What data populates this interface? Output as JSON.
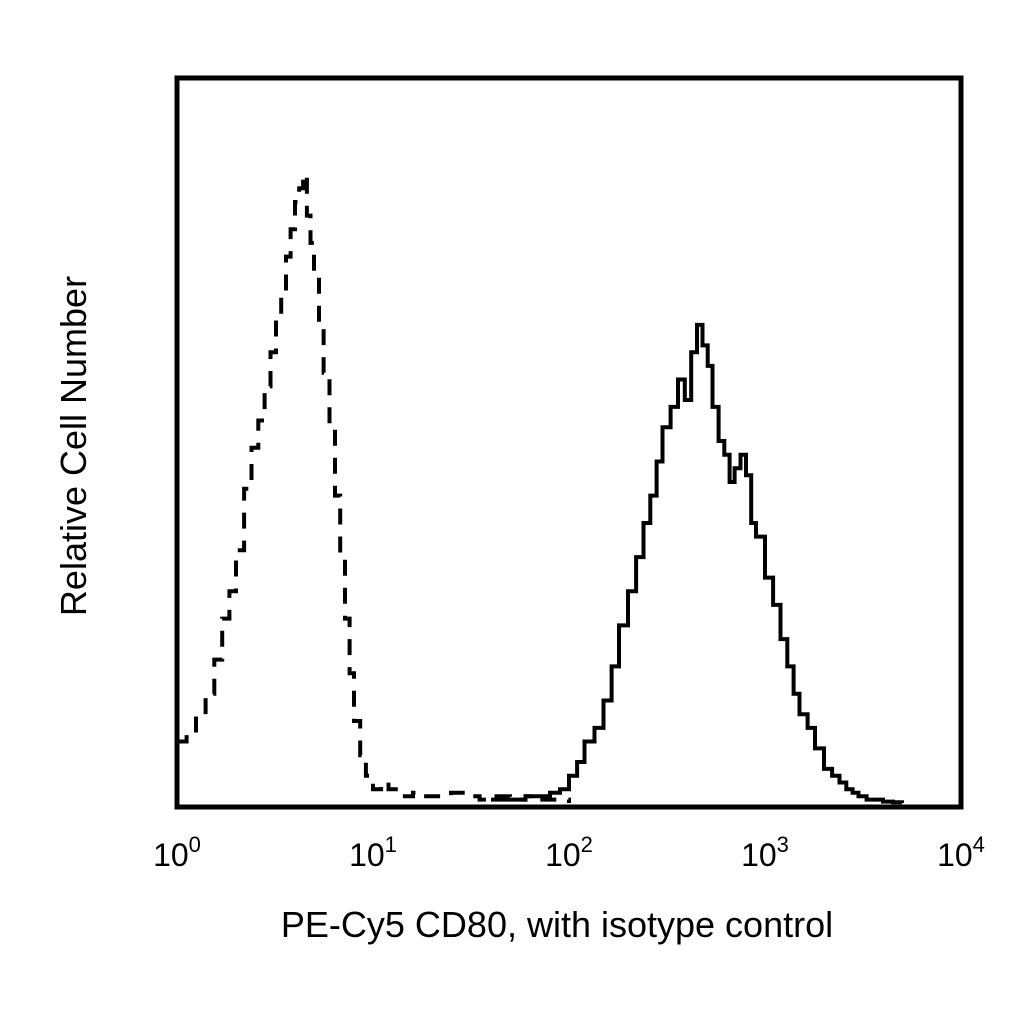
{
  "chart_data": {
    "type": "line",
    "xlabel": "PE-Cy5 CD80, with isotype control",
    "ylabel": "Relative Cell Number",
    "x_scale": "log",
    "xlim": [
      1,
      10000
    ],
    "ylim": [
      0,
      100
    ],
    "y_ticks_shown": false,
    "grid": false,
    "x_ticks": [
      {
        "base": "10",
        "exp": "0",
        "value": 1
      },
      {
        "base": "10",
        "exp": "1",
        "value": 10
      },
      {
        "base": "10",
        "exp": "2",
        "value": 100
      },
      {
        "base": "10",
        "exp": "3",
        "value": 1000
      },
      {
        "base": "10",
        "exp": "4",
        "value": 10000
      }
    ],
    "series": [
      {
        "style": "dashed",
        "color": "#000000",
        "x": [
          1.0,
          1.12,
          1.25,
          1.4,
          1.55,
          1.7,
          1.85,
          2.0,
          2.2,
          2.4,
          2.6,
          2.8,
          3.0,
          3.2,
          3.4,
          3.6,
          3.8,
          4.0,
          4.2,
          4.4,
          4.6,
          4.8,
          5.0,
          5.3,
          5.6,
          6.0,
          6.4,
          6.8,
          7.2,
          7.6,
          8.0,
          8.6,
          9.2,
          10,
          11,
          12,
          14,
          16,
          18,
          20,
          25,
          30,
          35,
          40,
          45,
          50,
          60,
          70,
          80,
          90,
          100
        ],
        "y": [
          9,
          10,
          13,
          16,
          21,
          27,
          31,
          37,
          46,
          52,
          56,
          61,
          66,
          71,
          75,
          80,
          84,
          88,
          90,
          92,
          86,
          82,
          77,
          70,
          63,
          55,
          45,
          36,
          27,
          19,
          12,
          7,
          4,
          2,
          3,
          2,
          1,
          1.5,
          1,
          1,
          1.5,
          1,
          0.5,
          1,
          1,
          0.5,
          1,
          0.5,
          0.5,
          0.5,
          0
        ]
      },
      {
        "style": "solid",
        "color": "#000000",
        "x": [
          40,
          50,
          60,
          70,
          80,
          90,
          100,
          110,
          120,
          135,
          150,
          165,
          180,
          200,
          220,
          240,
          260,
          280,
          300,
          330,
          360,
          390,
          420,
          450,
          480,
          510,
          540,
          580,
          620,
          660,
          700,
          750,
          800,
          850,
          900,
          950,
          1000,
          1100,
          1200,
          1300,
          1400,
          1500,
          1650,
          1800,
          2000,
          2200,
          2400,
          2600,
          2800,
          3000,
          3300,
          3600,
          4000,
          4500,
          5000
        ],
        "y": [
          0.5,
          0.5,
          1,
          1,
          1.5,
          2,
          4,
          6,
          9,
          11,
          15,
          20,
          26,
          31,
          36,
          41,
          45,
          50,
          55,
          58,
          62,
          59,
          66,
          70,
          67,
          64,
          58,
          53,
          51,
          47,
          49,
          51,
          48,
          41,
          39,
          39,
          33,
          29,
          24,
          20,
          16,
          13,
          11,
          8,
          5,
          4,
          3,
          2,
          1.5,
          1,
          0.5,
          0.5,
          0.2,
          0.1,
          0
        ]
      }
    ]
  }
}
